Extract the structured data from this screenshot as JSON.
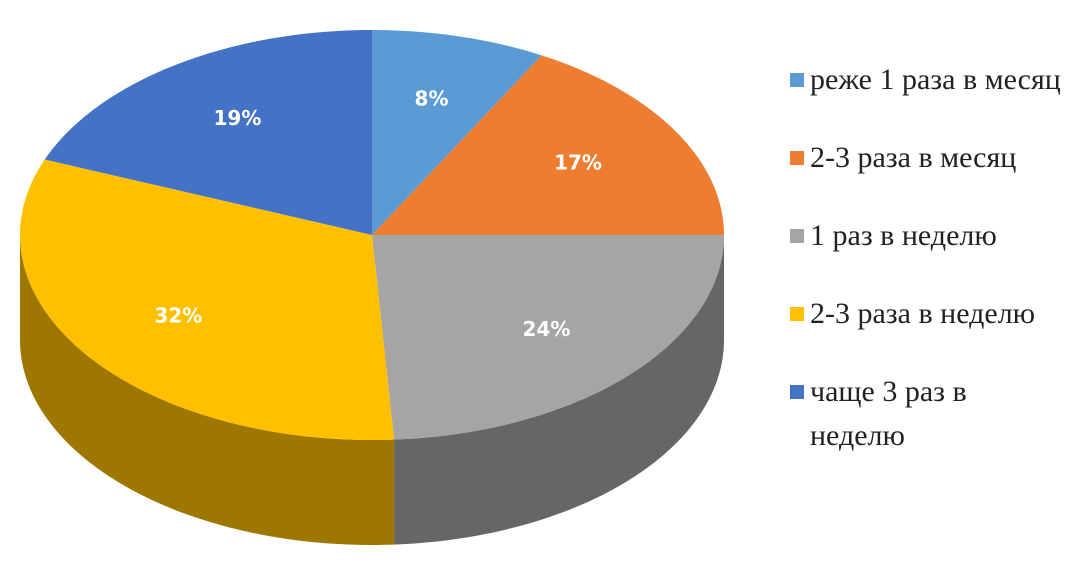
{
  "chart_data": {
    "type": "pie3d",
    "categories": [
      "реже 1 раза в месяц",
      "2-3 раза в месяц",
      "1 раз в неделю",
      "2-3 раза в неделю",
      "чаще 3 раз в неделю"
    ],
    "values": [
      8,
      17,
      24,
      32,
      19
    ],
    "value_labels": [
      "8%",
      "17%",
      "24%",
      "32%",
      "19%"
    ],
    "colors": [
      "#5b9bd5",
      "#ed7d31",
      "#a5a5a5",
      "#ffc000",
      "#4472c4"
    ],
    "legend": "right"
  }
}
